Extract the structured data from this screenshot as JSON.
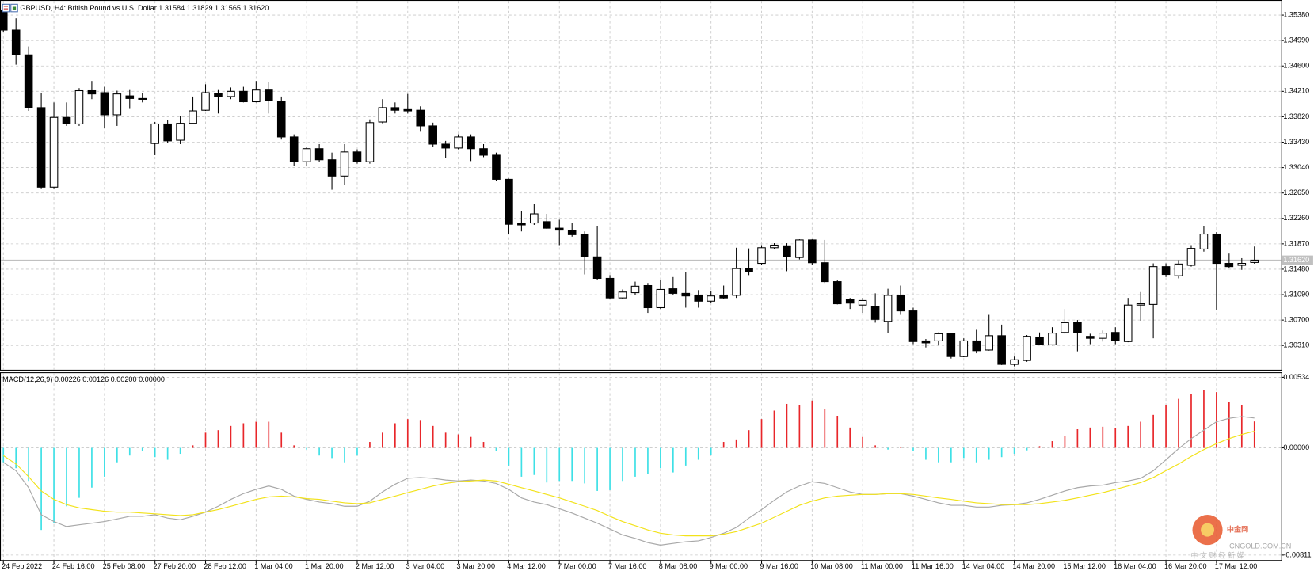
{
  "chart_data": [
    {
      "type": "candlestick",
      "title": "GBPUSD, H4:  British Pound vs U.S. Dollar  1.31584 1.31829 1.31565 1.31620",
      "categories": [
        "24 Feb 2022",
        null,
        null,
        null,
        "24 Feb 16:00",
        null,
        null,
        null,
        "25 Feb 08:00",
        null,
        null,
        null,
        "27 Feb 20:00",
        null,
        null,
        null,
        "28 Feb 12:00",
        null,
        null,
        null,
        "1 Mar 04:00",
        null,
        null,
        null,
        "1 Mar 20:00",
        null,
        null,
        null,
        "2 Mar 12:00",
        null,
        null,
        null,
        "3 Mar 04:00",
        null,
        null,
        null,
        "3 Mar 20:00",
        null,
        null,
        null,
        "4 Mar 12:00",
        null,
        null,
        null,
        "7 Mar 00:00",
        null,
        null,
        null,
        "7 Mar 16:00",
        null,
        null,
        null,
        "8 Mar 08:00",
        null,
        null,
        null,
        "9 Mar 00:00",
        null,
        null,
        null,
        "9 Mar 16:00",
        null,
        null,
        null,
        "10 Mar 08:00",
        null,
        null,
        null,
        "11 Mar 00:00",
        null,
        null,
        null,
        "11 Mar 16:00",
        null,
        null,
        null,
        "14 Mar 04:00",
        null,
        null,
        null,
        "14 Mar 20:00",
        null,
        null,
        null,
        "15 Mar 12:00",
        null,
        null,
        null,
        "16 Mar 04:00",
        null,
        null,
        null,
        "16 Mar 20:00",
        null,
        null,
        null,
        "17 Mar 12:00",
        null,
        null,
        null
      ],
      "open": [
        1.3546,
        1.3515,
        1.3477,
        1.3396,
        1.3274,
        1.3381,
        1.3371,
        1.3422,
        1.3419,
        1.3385,
        1.3414,
        1.341,
        1.3341,
        1.3371,
        1.3346,
        1.3372,
        1.3392,
        1.3418,
        1.3413,
        1.3421,
        1.3405,
        1.3423,
        1.3405,
        1.3351,
        1.3313,
        1.3333,
        1.3316,
        1.3291,
        1.3328,
        1.3313,
        1.3374,
        1.3396,
        1.3393,
        1.3392,
        1.3368,
        1.334,
        1.3334,
        1.3351,
        1.3333,
        1.3323,
        1.3286,
        1.3219,
        1.3219,
        1.3221,
        1.3211,
        1.3208,
        1.3201,
        1.3167,
        1.3134,
        1.3104,
        1.3112,
        1.3123,
        1.3089,
        1.3118,
        1.3111,
        1.3108,
        1.3099,
        1.3108,
        1.3108,
        1.3149,
        1.3157,
        1.3181,
        1.3184,
        1.3166,
        1.3193,
        1.3158,
        1.3129,
        1.3102,
        1.3093,
        1.3091,
        1.3068,
        1.3108,
        1.3084,
        1.3038,
        1.3038,
        1.3049,
        1.3014,
        1.3038,
        1.3024,
        1.3046,
        1.3002,
        1.3008,
        1.3044,
        1.3032,
        1.3051,
        1.3067,
        1.3045,
        1.3042,
        1.3051,
        1.3037,
        1.3093,
        1.3094,
        1.3152,
        1.3138,
        1.3154,
        1.3179,
        1.3202,
        1.3157,
        1.3154,
        1.31584
      ],
      "high": [
        1.3555,
        1.3533,
        1.349,
        1.3419,
        1.3404,
        1.3404,
        1.3426,
        1.3437,
        1.3428,
        1.3422,
        1.3423,
        1.3419,
        1.3374,
        1.3377,
        1.3383,
        1.3413,
        1.3432,
        1.3423,
        1.3427,
        1.3428,
        1.3437,
        1.3436,
        1.3413,
        1.3355,
        1.3336,
        1.334,
        1.3327,
        1.334,
        1.3332,
        1.3378,
        1.3409,
        1.3404,
        1.3417,
        1.3398,
        1.3373,
        1.3345,
        1.3355,
        1.3355,
        1.334,
        1.3327,
        1.3287,
        1.3237,
        1.3248,
        1.3233,
        1.3224,
        1.3219,
        1.3206,
        1.3214,
        1.3139,
        1.3117,
        1.3129,
        1.3127,
        1.3131,
        1.3136,
        1.3144,
        1.3116,
        1.3114,
        1.3123,
        1.3181,
        1.318,
        1.3185,
        1.3188,
        1.3188,
        1.3194,
        1.3194,
        1.3193,
        1.3131,
        1.3104,
        1.3104,
        1.3111,
        1.3118,
        1.3123,
        1.3089,
        1.3041,
        1.3051,
        1.305,
        1.3042,
        1.3055,
        1.3078,
        1.3063,
        1.3014,
        1.3047,
        1.3051,
        1.3059,
        1.3087,
        1.307,
        1.3049,
        1.3054,
        1.3059,
        1.3104,
        1.3113,
        1.3157,
        1.3157,
        1.3162,
        1.3185,
        1.3214,
        1.3205,
        1.3172,
        1.3165,
        1.31829
      ],
      "low": [
        1.3512,
        1.3462,
        1.3391,
        1.3271,
        1.3271,
        1.3368,
        1.3368,
        1.3409,
        1.3365,
        1.3368,
        1.3394,
        1.3404,
        1.3323,
        1.3342,
        1.334,
        1.3371,
        1.3391,
        1.3387,
        1.3409,
        1.3404,
        1.3404,
        1.3387,
        1.3347,
        1.3306,
        1.3307,
        1.3313,
        1.327,
        1.3278,
        1.331,
        1.331,
        1.3372,
        1.3387,
        1.3387,
        1.3359,
        1.3336,
        1.3319,
        1.3332,
        1.3314,
        1.332,
        1.3284,
        1.3202,
        1.3206,
        1.3216,
        1.321,
        1.3185,
        1.3198,
        1.314,
        1.3132,
        1.3102,
        1.3102,
        1.3109,
        1.3081,
        1.3087,
        1.3108,
        1.3089,
        1.3089,
        1.3096,
        1.3103,
        1.3104,
        1.3139,
        1.3154,
        1.3179,
        1.3145,
        1.3163,
        1.3154,
        1.3127,
        1.3094,
        1.3087,
        1.3081,
        1.3066,
        1.305,
        1.3078,
        1.3033,
        1.3028,
        1.3031,
        1.3011,
        1.3013,
        1.3019,
        1.3023,
        1.3001,
        1.2999,
        1.3006,
        1.3032,
        1.3031,
        1.3049,
        1.3022,
        1.3033,
        1.3037,
        1.3033,
        1.3036,
        1.3069,
        1.3042,
        1.3136,
        1.3134,
        1.3152,
        1.3175,
        1.3086,
        1.315,
        1.3147,
        1.31565
      ],
      "close": [
        1.3515,
        1.3477,
        1.3396,
        1.3274,
        1.3381,
        1.3371,
        1.3422,
        1.3417,
        1.3385,
        1.3417,
        1.341,
        1.3409,
        1.3371,
        1.3345,
        1.3372,
        1.3391,
        1.3419,
        1.3413,
        1.3421,
        1.3405,
        1.3423,
        1.3407,
        1.3351,
        1.3313,
        1.3333,
        1.3316,
        1.3291,
        1.3328,
        1.3313,
        1.3373,
        1.3396,
        1.3392,
        1.3391,
        1.3368,
        1.334,
        1.3334,
        1.3351,
        1.3333,
        1.3323,
        1.3286,
        1.3217,
        1.3216,
        1.3233,
        1.3211,
        1.3208,
        1.3201,
        1.3167,
        1.3134,
        1.3104,
        1.3113,
        1.3122,
        1.3089,
        1.3117,
        1.3111,
        1.3107,
        1.3099,
        1.3107,
        1.3104,
        1.3149,
        1.3144,
        1.3181,
        1.3185,
        1.3167,
        1.3193,
        1.3158,
        1.3129,
        1.3095,
        1.3096,
        1.31,
        1.3071,
        1.3108,
        1.3084,
        1.3037,
        1.3035,
        1.3049,
        1.3014,
        1.3038,
        1.3023,
        1.3046,
        1.3002,
        1.3009,
        1.3045,
        1.3033,
        1.305,
        1.3066,
        1.3051,
        1.3042,
        1.305,
        1.3038,
        1.3093,
        1.3095,
        1.3152,
        1.314,
        1.3156,
        1.318,
        1.3202,
        1.3157,
        1.3152,
        1.3157,
        1.3162
      ],
      "up_color": "#ffffff",
      "down_color": "#000000",
      "ylim": [
        1.29937,
        1.35586
      ],
      "yticks": [
        {
          "value": 1.3538,
          "label": "1.35380"
        },
        {
          "value": 1.3499,
          "label": "1.34990"
        },
        {
          "value": 1.346,
          "label": "1.34600"
        },
        {
          "value": 1.3421,
          "label": "1.34210"
        },
        {
          "value": 1.3382,
          "label": "1.33820"
        },
        {
          "value": 1.3343,
          "label": "1.33430"
        },
        {
          "value": 1.3304,
          "label": "1.33040"
        },
        {
          "value": 1.3265,
          "label": "1.32650"
        },
        {
          "value": 1.3226,
          "label": "1.32260"
        },
        {
          "value": 1.3187,
          "label": "1.31870"
        },
        {
          "value": 1.3148,
          "label": "1.31480"
        },
        {
          "value": 1.3109,
          "label": "1.31090"
        },
        {
          "value": 1.307,
          "label": "1.30700"
        },
        {
          "value": 1.3031,
          "label": "1.30310"
        }
      ],
      "current_price": {
        "value": 1.3162,
        "label": "1.31620"
      },
      "grid": true
    },
    {
      "type": "macd",
      "label": "MACD(12,26,9) 0.00226 0.00126 0.00200 0.00000",
      "histogram": {
        "positive_color": "#e8262a",
        "negative_color": "#3ee0e6",
        "values": [
          -0.00109,
          -0.00154,
          -0.0025,
          -0.00621,
          -0.0057,
          -0.00442,
          -0.00378,
          -0.00301,
          -0.00218,
          -0.00109,
          -0.00058,
          -0.00026,
          -0.0007,
          -0.0009,
          -0.00045,
          0.00019,
          0.00115,
          0.00134,
          0.00166,
          0.00186,
          0.00198,
          0.00198,
          0.00115,
          0.00019,
          -0.00013,
          -0.00058,
          -0.00077,
          -0.00109,
          -0.00058,
          0.00045,
          0.00115,
          0.00186,
          0.00218,
          0.00211,
          0.00166,
          0.00115,
          0.00102,
          0.00083,
          0.00045,
          -0.00026,
          -0.00134,
          -0.00218,
          -0.00205,
          -0.00262,
          -0.0025,
          -0.0025,
          -0.00269,
          -0.00326,
          -0.0032,
          -0.0025,
          -0.00218,
          -0.00198,
          -0.00154,
          -0.00186,
          -0.00134,
          -0.0009,
          -0.00051,
          0.00045,
          0.00064,
          0.00134,
          0.00218,
          0.00282,
          0.00333,
          0.00326,
          0.00358,
          0.00294,
          0.00243,
          0.00154,
          0.00083,
          0.00019,
          -0.00013,
          6e-05,
          -0.00026,
          -0.0009,
          -0.00109,
          -0.00109,
          -0.00077,
          -0.00109,
          -0.0009,
          -0.0007,
          -0.00045,
          -0.00019,
          0.00013,
          0.00051,
          0.0009,
          0.00141,
          0.00154,
          0.0016,
          0.00147,
          0.00166,
          0.00198,
          0.0025,
          0.00326,
          0.00371,
          0.0041,
          0.00435,
          0.00422,
          0.00346,
          0.00326,
          0.002
        ]
      },
      "series": [
        {
          "color": "#a8a8a8",
          "values": [
            -0.00109,
            -0.00173,
            -0.00301,
            -0.00506,
            -0.00557,
            -0.00595,
            -0.00582,
            -0.0057,
            -0.00557,
            -0.00538,
            -0.00518,
            -0.00518,
            -0.00506,
            -0.00531,
            -0.00544,
            -0.00518,
            -0.00486,
            -0.00442,
            -0.0039,
            -0.00346,
            -0.00314,
            -0.00288,
            -0.00314,
            -0.00365,
            -0.0039,
            -0.0041,
            -0.00422,
            -0.00442,
            -0.00442,
            -0.00403,
            -0.00333,
            -0.00275,
            -0.0023,
            -0.00224,
            -0.0023,
            -0.00243,
            -0.0025,
            -0.00243,
            -0.0025,
            -0.00269,
            -0.00314,
            -0.00378,
            -0.0041,
            -0.00429,
            -0.00461,
            -0.00493,
            -0.00531,
            -0.0057,
            -0.00614,
            -0.00659,
            -0.00685,
            -0.00717,
            -0.00736,
            -0.00723,
            -0.0071,
            -0.00704,
            -0.00678,
            -0.00646,
            -0.00602,
            -0.00531,
            -0.00467,
            -0.00397,
            -0.00333,
            -0.00288,
            -0.00256,
            -0.00269,
            -0.00301,
            -0.00333,
            -0.00352,
            -0.00352,
            -0.00346,
            -0.00346,
            -0.00365,
            -0.0039,
            -0.00416,
            -0.00435,
            -0.00435,
            -0.00448,
            -0.00448,
            -0.00435,
            -0.00429,
            -0.00416,
            -0.0039,
            -0.00358,
            -0.00326,
            -0.00301,
            -0.00288,
            -0.00282,
            -0.00262,
            -0.0025,
            -0.0023,
            -0.00173,
            -0.0009,
            -6e-05,
            0.0007,
            0.00134,
            0.00198,
            0.00224,
            0.00237,
            0.00226
          ]
        },
        {
          "color": "#f2e21a",
          "values": [
            -0.00058,
            -0.00122,
            -0.00218,
            -0.00326,
            -0.0039,
            -0.00429,
            -0.00454,
            -0.00467,
            -0.0048,
            -0.00486,
            -0.00486,
            -0.00493,
            -0.00499,
            -0.00506,
            -0.00512,
            -0.00506,
            -0.00486,
            -0.00467,
            -0.00442,
            -0.00416,
            -0.0039,
            -0.00371,
            -0.00365,
            -0.00371,
            -0.00384,
            -0.0039,
            -0.00403,
            -0.00416,
            -0.00422,
            -0.00416,
            -0.0039,
            -0.00365,
            -0.00339,
            -0.00314,
            -0.00288,
            -0.00269,
            -0.00256,
            -0.0025,
            -0.00243,
            -0.0025,
            -0.00275,
            -0.00301,
            -0.00326,
            -0.00352,
            -0.00378,
            -0.0041,
            -0.00442,
            -0.00474,
            -0.00518,
            -0.00557,
            -0.00589,
            -0.00621,
            -0.00646,
            -0.00659,
            -0.00666,
            -0.00666,
            -0.00666,
            -0.00653,
            -0.00634,
            -0.00602,
            -0.0057,
            -0.00525,
            -0.0048,
            -0.00435,
            -0.00403,
            -0.00378,
            -0.00365,
            -0.00358,
            -0.00352,
            -0.00352,
            -0.00346,
            -0.00346,
            -0.00352,
            -0.00365,
            -0.00378,
            -0.0039,
            -0.00403,
            -0.00416,
            -0.00422,
            -0.00429,
            -0.00429,
            -0.00429,
            -0.00422,
            -0.0041,
            -0.00397,
            -0.00378,
            -0.00358,
            -0.00339,
            -0.00314,
            -0.00288,
            -0.00262,
            -0.00224,
            -0.00173,
            -0.00122,
            -0.00064,
            -0.00013,
            0.00032,
            0.0007,
            0.00102,
            0.00126
          ]
        }
      ],
      "ylim": [
        -0.00811,
        0.00534
      ],
      "yticks": [
        {
          "value": 0.00534,
          "label": "0.00534"
        },
        {
          "value": 0,
          "label": "0.00000"
        },
        {
          "value": -0.00811,
          "label": "-0.00811"
        }
      ],
      "grid": true
    }
  ],
  "watermark": {
    "name": "中金网",
    "domain": "CNGOLD.COM.CN",
    "tagline": "中 文 财 经 新 媒"
  }
}
